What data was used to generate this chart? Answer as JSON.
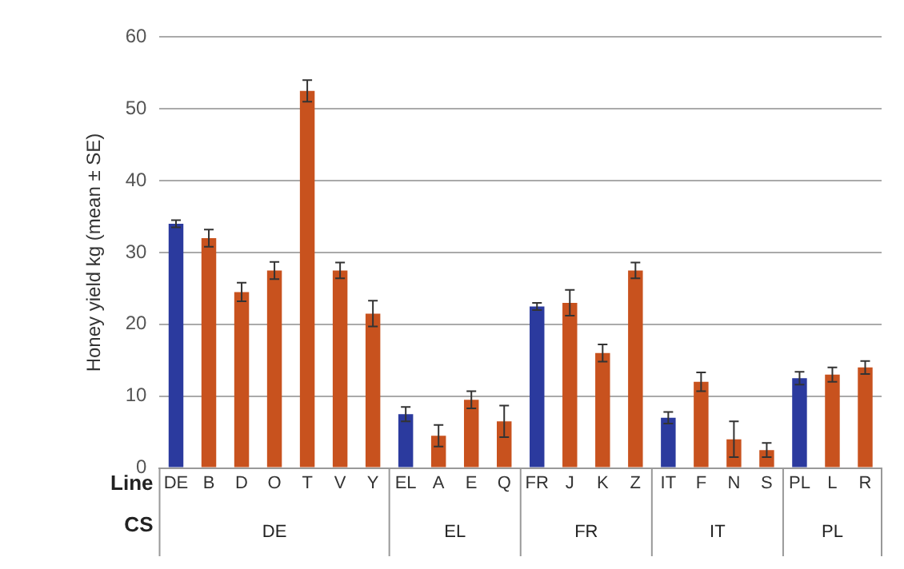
{
  "chart_data": {
    "type": "bar",
    "ylabel": "Honey yield kg (mean ± SE)",
    "categories": [
      "DE",
      "B",
      "D",
      "O",
      "T",
      "V",
      "Y",
      "EL",
      "A",
      "E",
      "Q",
      "FR",
      "J",
      "K",
      "Z",
      "IT",
      "F",
      "N",
      "S",
      "PL",
      "L",
      "R"
    ],
    "values": [
      34,
      32,
      24.5,
      27.5,
      52.5,
      27.5,
      21.5,
      7.5,
      4.5,
      9.5,
      6.5,
      22.5,
      23,
      16,
      27.5,
      7,
      12,
      4,
      2.5,
      12.5,
      13,
      14
    ],
    "errors": [
      0.5,
      1.2,
      1.3,
      1.2,
      1.5,
      1.1,
      1.8,
      1,
      1.5,
      1.2,
      2.2,
      0.5,
      1.8,
      1.2,
      1.1,
      0.8,
      1.3,
      2.5,
      1,
      0.9,
      1,
      0.9
    ],
    "colors": [
      "#2b3a9e",
      "#c8521e",
      "#c8521e",
      "#c8521e",
      "#c8521e",
      "#c8521e",
      "#c8521e",
      "#2b3a9e",
      "#c8521e",
      "#c8521e",
      "#c8521e",
      "#2b3a9e",
      "#c8521e",
      "#c8521e",
      "#c8521e",
      "#2b3a9e",
      "#c8521e",
      "#c8521e",
      "#c8521e",
      "#2b3a9e",
      "#c8521e",
      "#c8521e"
    ],
    "annotations": [
      "Line",
      "CS",
      "DE",
      "EL",
      "FR",
      "IT",
      "PL"
    ],
    "ylim": [
      0,
      60
    ],
    "yticks": [
      0,
      10,
      20,
      30,
      40,
      50,
      60
    ],
    "grid": "y",
    "legend": false
  }
}
